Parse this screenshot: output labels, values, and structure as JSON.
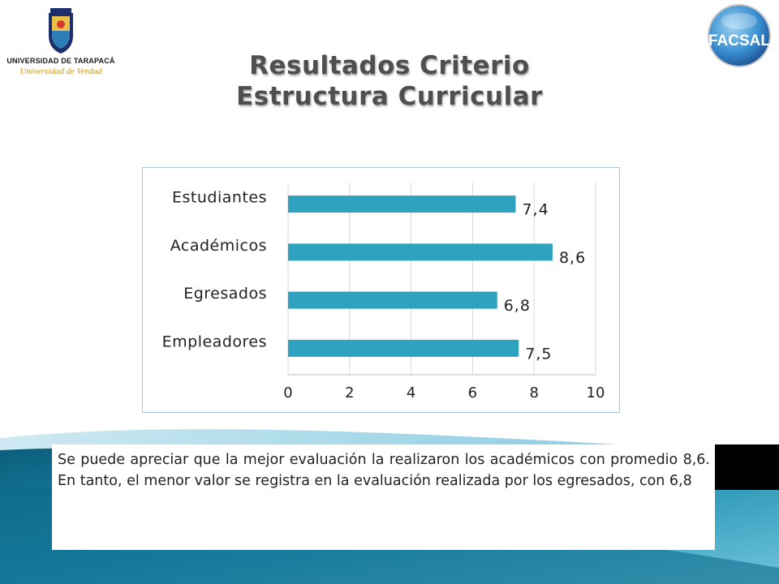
{
  "logos": {
    "university_name": "UNIVERSIDAD DE TARAPACÁ",
    "university_motto": "Universidad de Verdad",
    "facsal_text": "FACSAL"
  },
  "slide": {
    "title_line1": "Resultados Criterio",
    "title_line2": "Estructura Curricular",
    "caption": "Se puede apreciar que la mejor evaluación la realizaron los académicos con promedio 8,6. En tanto, el menor valor se registra en la evaluación realizada por los egresados, con 6,8"
  },
  "colors": {
    "bar": "#2ea2bf",
    "title": "#4f4f4f",
    "deco_teal": "#1e7f9c"
  },
  "chart_data": {
    "type": "bar",
    "orientation": "horizontal",
    "categories": [
      "Estudiantes",
      "Académicos",
      "Egresados",
      "Empleadores"
    ],
    "values": [
      7.4,
      8.6,
      6.8,
      7.5
    ],
    "value_labels": [
      "7,4",
      "8,6",
      "6,8",
      "7,5"
    ],
    "x_ticks": [
      "0",
      "2",
      "4",
      "6",
      "8",
      "10"
    ],
    "xlim": [
      0,
      10
    ],
    "grid": "vertical",
    "legend": "none",
    "title": "",
    "xlabel": "",
    "ylabel": ""
  }
}
